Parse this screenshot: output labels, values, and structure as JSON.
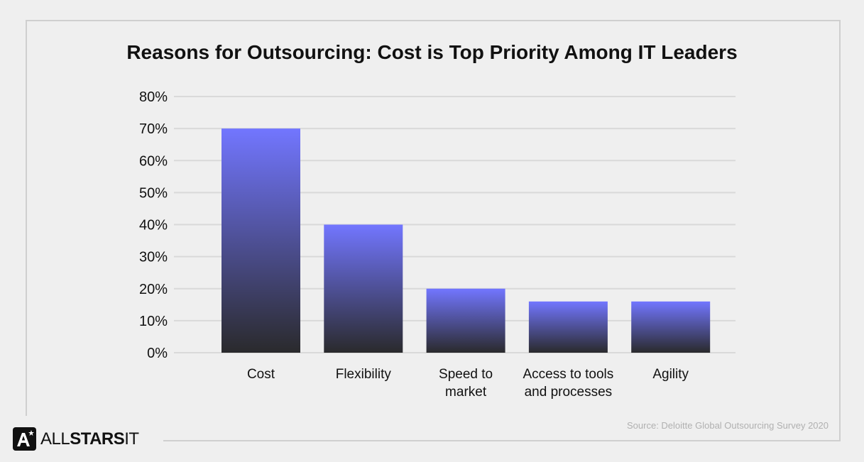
{
  "chart_data": {
    "type": "bar",
    "title": "Reasons for Outsourcing: Cost is Top Priority Among IT Leaders",
    "categories": [
      "Cost",
      "Flexibility",
      "Speed to market",
      "Access to tools and processes",
      "Agility"
    ],
    "category_lines": [
      [
        "Cost"
      ],
      [
        "Flexibility"
      ],
      [
        "Speed to",
        "market"
      ],
      [
        "Access to tools",
        "and processes"
      ],
      [
        "Agility"
      ]
    ],
    "values": [
      70,
      40,
      20,
      16,
      16
    ],
    "ylim": [
      0,
      80
    ],
    "yticks": [
      0,
      10,
      20,
      30,
      40,
      50,
      60,
      70,
      80
    ],
    "ytick_labels": [
      "0%",
      "10%",
      "20%",
      "30%",
      "40%",
      "50%",
      "60%",
      "70%",
      "80%"
    ],
    "xlabel": "",
    "ylabel": "",
    "grid": true,
    "bar_gradient": [
      "#7276ff",
      "#2a2a2c"
    ]
  },
  "source": "Source: Deloitte Global Outsourcing Survey 2020",
  "logo": {
    "mark": "A",
    "star": "*",
    "text_light": "ALL",
    "text_bold": "STARS",
    "text_end": "IT"
  }
}
